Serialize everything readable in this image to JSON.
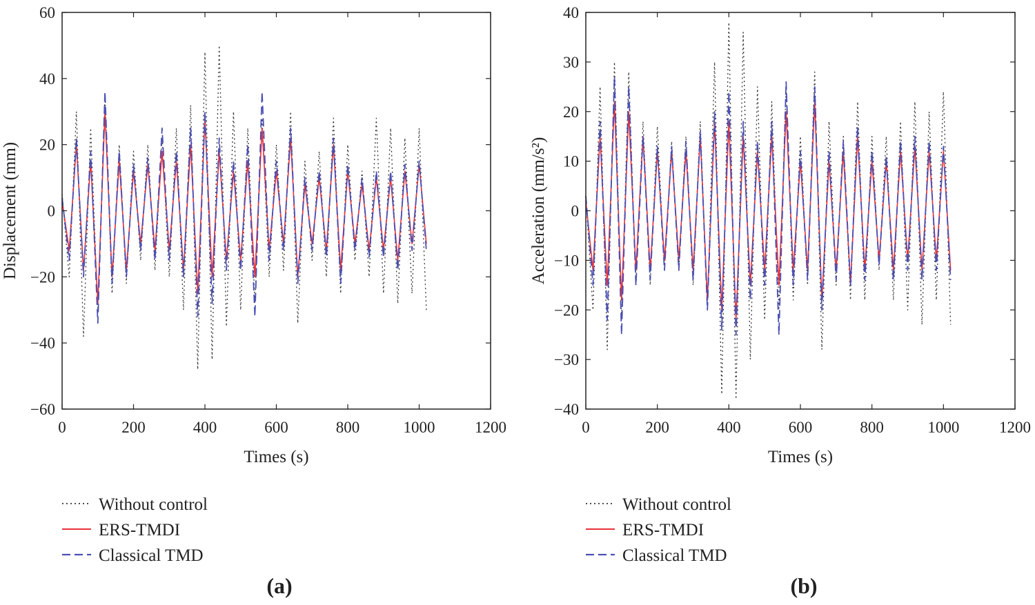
{
  "colors": {
    "without_control": "#333333",
    "ers_tmdi": "#e8303a",
    "classical_tmd": "#4a4fb5"
  },
  "chart_data": [
    {
      "panel_label": "(a)",
      "type": "line",
      "xlabel": "Times (s)",
      "ylabel": "Displacement (mm)",
      "xlim": [
        0,
        1200
      ],
      "ylim": [
        -60,
        60
      ],
      "xticks": [
        0,
        200,
        400,
        600,
        800,
        1000,
        1200
      ],
      "yticks": [
        -60,
        -40,
        -20,
        0,
        20,
        40,
        60
      ],
      "grid": false,
      "legend_position": "bottom",
      "x": [
        0,
        20,
        40,
        60,
        80,
        100,
        120,
        140,
        160,
        180,
        200,
        220,
        240,
        260,
        280,
        300,
        320,
        340,
        360,
        380,
        400,
        420,
        440,
        460,
        480,
        500,
        520,
        540,
        560,
        580,
        600,
        620,
        640,
        660,
        680,
        700,
        720,
        740,
        760,
        780,
        800,
        820,
        840,
        860,
        880,
        900,
        920,
        940,
        960,
        980,
        1000,
        1020
      ],
      "series": [
        {
          "name": "Without control",
          "style": "dotted",
          "values": [
            5,
            -20,
            30,
            -38,
            25,
            -30,
            35,
            -25,
            20,
            -22,
            18,
            -15,
            20,
            -18,
            22,
            -20,
            25,
            -30,
            32,
            -48,
            48,
            -45,
            50,
            -35,
            30,
            -30,
            25,
            -28,
            28,
            -20,
            20,
            -18,
            30,
            -34,
            15,
            -15,
            18,
            -20,
            28,
            -25,
            20,
            -15,
            12,
            -20,
            28,
            -25,
            25,
            -28,
            22,
            -25,
            25,
            -30
          ]
        },
        {
          "name": "ERS-TMDI",
          "style": "solid",
          "values": [
            3,
            -12,
            20,
            -18,
            15,
            -28,
            30,
            -20,
            15,
            -18,
            12,
            -10,
            14,
            -12,
            18,
            -12,
            15,
            -18,
            20,
            -25,
            28,
            -20,
            18,
            -15,
            12,
            -15,
            15,
            -20,
            25,
            -12,
            12,
            -10,
            22,
            -20,
            8,
            -10,
            10,
            -12,
            20,
            -18,
            12,
            -10,
            8,
            -12,
            10,
            -12,
            10,
            -15,
            12,
            -10,
            14,
            -10
          ]
        },
        {
          "name": "Classical TMD",
          "style": "dashed",
          "values": [
            4,
            -15,
            22,
            -20,
            18,
            -34,
            36,
            -22,
            18,
            -20,
            14,
            -12,
            16,
            -15,
            25,
            -15,
            18,
            -20,
            25,
            -32,
            30,
            -28,
            22,
            -18,
            15,
            -18,
            20,
            -32,
            36,
            -15,
            15,
            -12,
            25,
            -22,
            10,
            -12,
            12,
            -14,
            22,
            -22,
            14,
            -12,
            10,
            -14,
            12,
            -14,
            12,
            -18,
            14,
            -12,
            15,
            -12
          ]
        }
      ]
    },
    {
      "panel_label": "(b)",
      "type": "line",
      "xlabel": "Times (s)",
      "ylabel": "Acceleration (mm/s²)",
      "xlim": [
        0,
        1200
      ],
      "ylim": [
        -40,
        40
      ],
      "xticks": [
        0,
        200,
        400,
        600,
        800,
        1000,
        1200
      ],
      "yticks": [
        -40,
        -30,
        -20,
        -10,
        0,
        10,
        20,
        30,
        40
      ],
      "grid": false,
      "legend_position": "bottom",
      "x": [
        0,
        20,
        40,
        60,
        80,
        100,
        120,
        140,
        160,
        180,
        200,
        220,
        240,
        260,
        280,
        300,
        320,
        340,
        360,
        380,
        400,
        420,
        440,
        460,
        480,
        500,
        520,
        540,
        560,
        580,
        600,
        620,
        640,
        660,
        680,
        700,
        720,
        740,
        760,
        780,
        800,
        820,
        840,
        860,
        880,
        900,
        920,
        940,
        960,
        980,
        1000,
        1020
      ],
      "series": [
        {
          "name": "Without control",
          "style": "dotted",
          "values": [
            3,
            -20,
            25,
            -28,
            30,
            -22,
            28,
            -15,
            18,
            -15,
            17,
            -12,
            14,
            -12,
            15,
            -15,
            18,
            -20,
            30,
            -37,
            38,
            -38,
            36,
            -30,
            25,
            -22,
            22,
            -20,
            25,
            -18,
            15,
            -15,
            28,
            -28,
            18,
            -15,
            15,
            -18,
            22,
            -18,
            15,
            -12,
            15,
            -18,
            18,
            -20,
            22,
            -23,
            20,
            -18,
            24,
            -23
          ]
        },
        {
          "name": "ERS-TMDI",
          "style": "solid",
          "values": [
            2,
            -12,
            15,
            -15,
            22,
            -18,
            20,
            -12,
            15,
            -12,
            12,
            -10,
            12,
            -10,
            12,
            -12,
            15,
            -18,
            18,
            -20,
            18,
            -22,
            15,
            -15,
            12,
            -12,
            15,
            -15,
            20,
            -12,
            10,
            -12,
            22,
            -18,
            10,
            -12,
            12,
            -15,
            15,
            -12,
            10,
            -10,
            10,
            -12,
            12,
            -10,
            13,
            -12,
            12,
            -10,
            12,
            -12
          ]
        },
        {
          "name": "Classical TMD",
          "style": "dashed",
          "values": [
            3,
            -15,
            18,
            -22,
            27,
            -25,
            25,
            -15,
            15,
            -14,
            13,
            -12,
            13,
            -12,
            14,
            -14,
            16,
            -20,
            20,
            -24,
            24,
            -25,
            18,
            -18,
            14,
            -15,
            18,
            -25,
            26,
            -15,
            12,
            -14,
            25,
            -20,
            12,
            -14,
            14,
            -15,
            17,
            -14,
            12,
            -11,
            11,
            -14,
            14,
            -12,
            15,
            -14,
            14,
            -12,
            13,
            -14
          ]
        }
      ]
    }
  ]
}
